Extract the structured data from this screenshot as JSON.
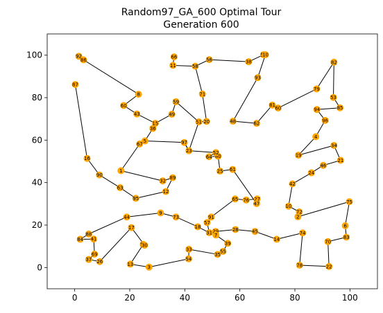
{
  "chart_data": {
    "type": "scatter",
    "title": "Random97_GA_600 Optimal Tour",
    "subtitle": "Generation 600",
    "xlabel": "",
    "ylabel": "",
    "xlim": [
      -10,
      110
    ],
    "ylim": [
      -10,
      110
    ],
    "xticks": [
      0,
      20,
      40,
      60,
      80,
      100
    ],
    "yticks": [
      0,
      20,
      40,
      60,
      80,
      100
    ],
    "grid": false,
    "colors": {
      "node": "#ffa500",
      "edge": "#000000",
      "axis": "#000000"
    },
    "nodes": [
      {
        "id": "92",
        "x": 1.5,
        "y": 99.5
      },
      {
        "id": "86",
        "x": 3.2,
        "y": 97.8
      },
      {
        "id": "8",
        "x": 23.2,
        "y": 81.6
      },
      {
        "id": "60",
        "x": 17.8,
        "y": 76.3
      },
      {
        "id": "43",
        "x": 22.6,
        "y": 72.3
      },
      {
        "id": "15",
        "x": 29.3,
        "y": 67.9
      },
      {
        "id": "36",
        "x": 28.4,
        "y": 65.5
      },
      {
        "id": "5",
        "x": 25.5,
        "y": 59.6
      },
      {
        "id": "67",
        "x": 23.6,
        "y": 58.2
      },
      {
        "id": "1",
        "x": 16.8,
        "y": 45.6
      },
      {
        "id": "32",
        "x": 32.0,
        "y": 40.8
      },
      {
        "id": "89",
        "x": 35.6,
        "y": 42.3
      },
      {
        "id": "12",
        "x": 33.1,
        "y": 35.8
      },
      {
        "id": "95",
        "x": 22.2,
        "y": 32.6
      },
      {
        "id": "44",
        "x": 18.9,
        "y": 23.8
      },
      {
        "id": "9",
        "x": 31.2,
        "y": 25.7
      },
      {
        "id": "73",
        "x": 36.8,
        "y": 23.8
      },
      {
        "id": "18",
        "x": 44.7,
        "y": 19.2
      },
      {
        "id": "57",
        "x": 48.1,
        "y": 21.2
      },
      {
        "id": "91",
        "x": 49.6,
        "y": 23.8
      },
      {
        "id": "65",
        "x": 58.3,
        "y": 32.3
      },
      {
        "id": "76",
        "x": 62.3,
        "y": 31.8
      },
      {
        "id": "27",
        "x": 66.3,
        "y": 32.3
      },
      {
        "id": "47",
        "x": 66.1,
        "y": 30.1
      },
      {
        "id": "61",
        "x": 57.4,
        "y": 46.2
      },
      {
        "id": "25",
        "x": 52.8,
        "y": 45.4
      },
      {
        "id": "80",
        "x": 52.1,
        "y": 52.4
      },
      {
        "id": "64",
        "x": 48.8,
        "y": 52.2
      },
      {
        "id": "52",
        "x": 51.3,
        "y": 54.1
      },
      {
        "id": "23",
        "x": 41.5,
        "y": 55.0
      },
      {
        "id": "97",
        "x": 39.8,
        "y": 58.9
      },
      {
        "id": "51",
        "x": 45.1,
        "y": 68.6
      },
      {
        "id": "49",
        "x": 35.3,
        "y": 72.2
      },
      {
        "id": "59",
        "x": 36.8,
        "y": 78.1
      },
      {
        "id": "20",
        "x": 47.9,
        "y": 68.8
      },
      {
        "id": "71",
        "x": 46.4,
        "y": 81.7
      },
      {
        "id": "58",
        "x": 43.8,
        "y": 94.8
      },
      {
        "id": "66",
        "x": 36.1,
        "y": 99.2
      },
      {
        "id": "11",
        "x": 35.7,
        "y": 95.2
      },
      {
        "id": "56",
        "x": 48.9,
        "y": 97.9
      },
      {
        "id": "38",
        "x": 63.2,
        "y": 96.9
      },
      {
        "id": "50",
        "x": 68.6,
        "y": 100.2
      },
      {
        "id": "10",
        "x": 69.3,
        "y": 100.2
      },
      {
        "id": "93",
        "x": 66.5,
        "y": 89.4
      },
      {
        "id": "48",
        "x": 57.5,
        "y": 68.9
      },
      {
        "id": "62",
        "x": 66.1,
        "y": 67.9
      },
      {
        "id": "81",
        "x": 71.8,
        "y": 76.5
      },
      {
        "id": "60b",
        "label": "60",
        "x": 73.9,
        "y": 75.1
      },
      {
        "id": "79",
        "x": 87.9,
        "y": 84.1
      },
      {
        "id": "82",
        "x": 94.2,
        "y": 96.7
      },
      {
        "id": "53",
        "x": 94.0,
        "y": 80.1
      },
      {
        "id": "85",
        "x": 96.4,
        "y": 75.2
      },
      {
        "id": "94",
        "x": 88.0,
        "y": 74.4
      },
      {
        "id": "96",
        "x": 91.0,
        "y": 69.3
      },
      {
        "id": "4",
        "x": 87.6,
        "y": 61.6
      },
      {
        "id": "19",
        "x": 81.3,
        "y": 52.9
      },
      {
        "id": "34",
        "x": 94.2,
        "y": 57.5
      },
      {
        "id": "21",
        "x": 96.6,
        "y": 50.5
      },
      {
        "id": "46",
        "x": 90.3,
        "y": 48.1
      },
      {
        "id": "24",
        "x": 86.0,
        "y": 44.6
      },
      {
        "id": "42",
        "x": 79.1,
        "y": 39.4
      },
      {
        "id": "10b",
        "label": "10",
        "x": 77.7,
        "y": 28.9
      },
      {
        "id": "72",
        "x": 81.6,
        "y": 26.2
      },
      {
        "id": "2",
        "x": 81.1,
        "y": 23.9
      },
      {
        "id": "75",
        "x": 99.8,
        "y": 31.0
      },
      {
        "id": "6",
        "x": 98.3,
        "y": 19.7
      },
      {
        "id": "83",
        "x": 98.7,
        "y": 14.3
      },
      {
        "id": "70",
        "x": 92.0,
        "y": 12.2
      },
      {
        "id": "22",
        "x": 92.4,
        "y": 0.5
      },
      {
        "id": "78",
        "x": 81.7,
        "y": 1.1
      },
      {
        "id": "74",
        "x": 82.8,
        "y": 16.3
      },
      {
        "id": "14",
        "x": 73.4,
        "y": 13.3
      },
      {
        "id": "45",
        "x": 65.5,
        "y": 17.0
      },
      {
        "id": "28",
        "x": 58.4,
        "y": 17.9
      },
      {
        "id": "29",
        "x": 51.2,
        "y": 17.0
      },
      {
        "id": "31",
        "x": 48.9,
        "y": 16.4
      },
      {
        "id": "7",
        "x": 51.3,
        "y": 15.3
      },
      {
        "id": "39",
        "x": 55.6,
        "y": 11.4
      },
      {
        "id": "55",
        "x": 53.9,
        "y": 7.6
      },
      {
        "id": "35",
        "x": 51.9,
        "y": 6.2
      },
      {
        "id": "33",
        "x": 41.5,
        "y": 8.6
      },
      {
        "id": "54",
        "x": 41.4,
        "y": 4.1
      },
      {
        "id": "3",
        "x": 27.0,
        "y": 0.2
      },
      {
        "id": "13",
        "x": 20.2,
        "y": 1.6
      },
      {
        "id": "50b",
        "label": "50",
        "x": 24.9,
        "y": 10.9
      },
      {
        "id": "30",
        "x": 25.4,
        "y": 10.5
      },
      {
        "id": "17",
        "x": 20.6,
        "y": 18.8
      },
      {
        "id": "26",
        "x": 9.1,
        "y": 2.8
      },
      {
        "id": "37",
        "x": 5.1,
        "y": 3.8
      },
      {
        "id": "69",
        "x": 7.2,
        "y": 6.3
      },
      {
        "id": "41",
        "x": 6.9,
        "y": 13.4
      },
      {
        "id": "84",
        "x": 2.0,
        "y": 13.3
      },
      {
        "id": "88",
        "x": 5.1,
        "y": 15.8
      },
      {
        "id": "63",
        "x": 16.5,
        "y": 37.6
      },
      {
        "id": "90",
        "x": 9.0,
        "y": 43.6
      },
      {
        "id": "16",
        "x": 4.5,
        "y": 51.4
      },
      {
        "id": "87",
        "x": 0.2,
        "y": 86.2
      }
    ],
    "tour": [
      "92",
      "86",
      "8",
      "60",
      "43",
      "15",
      "49",
      "59",
      "51",
      "20",
      "71",
      "58",
      "56",
      "38",
      "50",
      "10",
      "93",
      "48",
      "62",
      "81",
      "60b",
      "79",
      "82",
      "53",
      "85",
      "94",
      "96",
      "4",
      "19",
      "34",
      "21",
      "46",
      "24",
      "42",
      "10b",
      "72",
      "2",
      "75",
      "6",
      "83",
      "70",
      "22",
      "78",
      "74",
      "14",
      "45",
      "28",
      "29",
      "7",
      "39",
      "55",
      "35",
      "33",
      "54",
      "3",
      "13",
      "50b",
      "30",
      "17",
      "26",
      "37",
      "69",
      "41",
      "84",
      "88",
      "44",
      "9",
      "73",
      "18",
      "31",
      "57",
      "91",
      "65",
      "76",
      "27",
      "47",
      "61",
      "25",
      "80",
      "64",
      "52",
      "23",
      "97",
      "5",
      "67",
      "1",
      "32",
      "89",
      "12",
      "95",
      "63",
      "90",
      "16",
      "87"
    ],
    "extra_edges": [
      [
        "66",
        "11"
      ],
      [
        "11",
        "58"
      ],
      [
        "36",
        "5"
      ],
      [
        "15",
        "36"
      ],
      [
        "97",
        "23"
      ],
      [
        "51",
        "23"
      ]
    ]
  }
}
